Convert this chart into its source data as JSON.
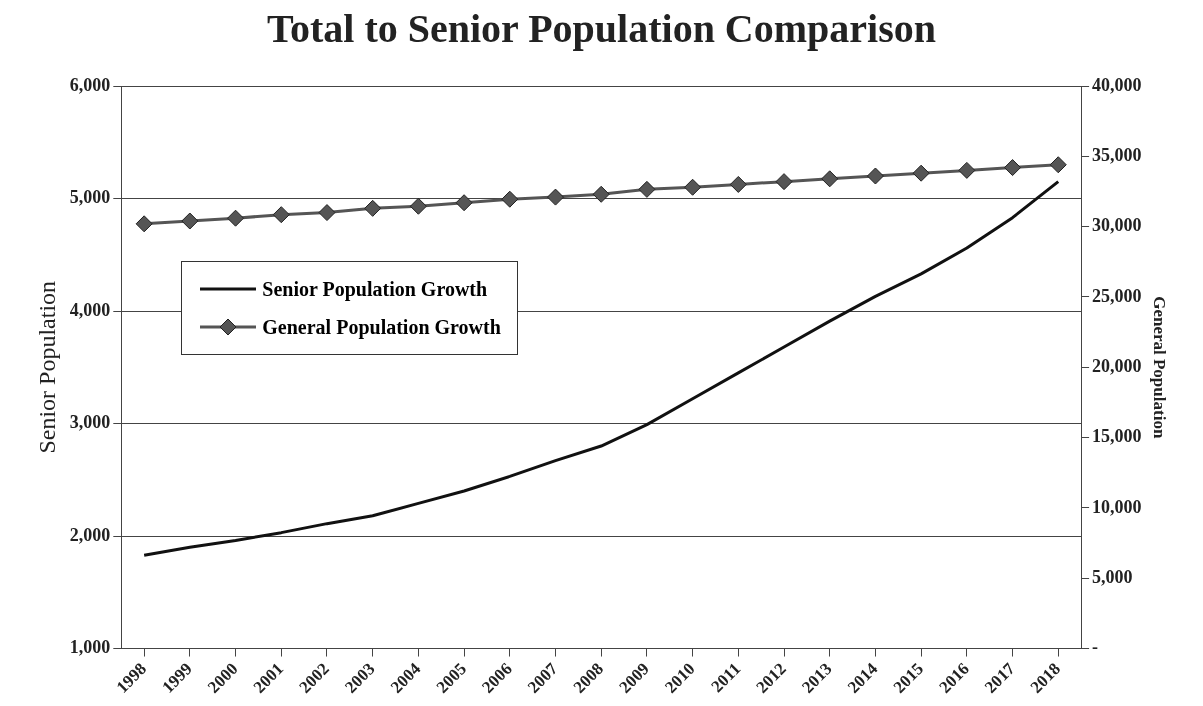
{
  "chart_data": {
    "type": "line",
    "title": "Total to Senior Population Comparison",
    "ylabel": "Senior Population",
    "y2label": "General Population",
    "categories": [
      "1998",
      "1999",
      "2000",
      "2001",
      "2002",
      "2003",
      "2004",
      "2005",
      "2006",
      "2007",
      "2008",
      "2009",
      "2010",
      "2011",
      "2012",
      "2013",
      "2014",
      "2015",
      "2016",
      "2017",
      "2018"
    ],
    "series": [
      {
        "name": "Senior Population Growth",
        "color": "#111111",
        "marker": "none",
        "values": [
          1830,
          1900,
          1960,
          2030,
          2110,
          2180,
          2290,
          2400,
          2530,
          2670,
          2800,
          2990,
          3220,
          3450,
          3680,
          3910,
          4130,
          4330,
          4560,
          4830,
          5150
        ]
      },
      {
        "name": "General Population Growth",
        "color": "#555555",
        "marker": "diamond",
        "axis": "y2",
        "values": [
          30200,
          30400,
          30600,
          30850,
          31000,
          31300,
          31450,
          31700,
          31950,
          32100,
          32300,
          32650,
          32800,
          33000,
          33200,
          33400,
          33600,
          33800,
          34000,
          34200,
          34400
        ]
      }
    ],
    "ylim": [
      1000,
      6000
    ],
    "yticks": [
      {
        "value": 1000,
        "label": "1,000"
      },
      {
        "value": 2000,
        "label": "2,000"
      },
      {
        "value": 3000,
        "label": "3,000"
      },
      {
        "value": 4000,
        "label": "4,000"
      },
      {
        "value": 5000,
        "label": "5,000"
      },
      {
        "value": 6000,
        "label": "6,000"
      }
    ],
    "y2lim": [
      0,
      40000
    ],
    "y2ticks": [
      {
        "value": 0,
        "label": "-"
      },
      {
        "value": 5000,
        "label": "5,000"
      },
      {
        "value": 10000,
        "label": "10,000"
      },
      {
        "value": 15000,
        "label": "15,000"
      },
      {
        "value": 20000,
        "label": "20,000"
      },
      {
        "value": 25000,
        "label": "25,000"
      },
      {
        "value": 30000,
        "label": "30,000"
      },
      {
        "value": 35000,
        "label": "35,000"
      },
      {
        "value": 40000,
        "label": "40,000"
      }
    ],
    "grid": "y",
    "legend": "center left"
  }
}
